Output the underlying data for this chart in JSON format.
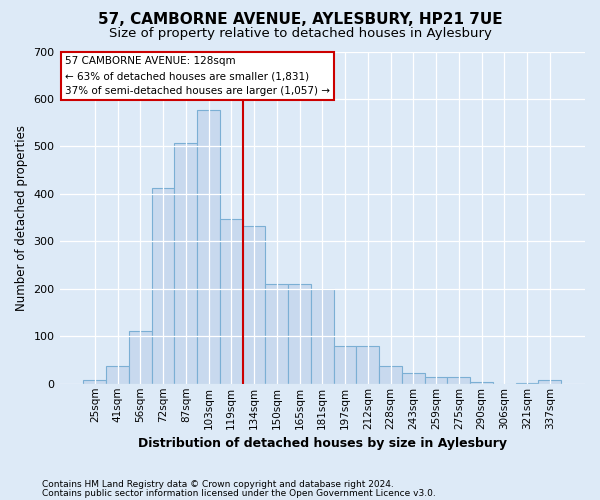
{
  "title": "57, CAMBORNE AVENUE, AYLESBURY, HP21 7UE",
  "subtitle": "Size of property relative to detached houses in Aylesbury",
  "xlabel": "Distribution of detached houses by size in Aylesbury",
  "ylabel": "Number of detached properties",
  "categories": [
    "25sqm",
    "41sqm",
    "56sqm",
    "72sqm",
    "87sqm",
    "103sqm",
    "119sqm",
    "134sqm",
    "150sqm",
    "165sqm",
    "181sqm",
    "197sqm",
    "212sqm",
    "228sqm",
    "243sqm",
    "259sqm",
    "275sqm",
    "290sqm",
    "306sqm",
    "321sqm",
    "337sqm"
  ],
  "values": [
    8,
    38,
    112,
    413,
    507,
    577,
    347,
    333,
    211,
    210,
    200,
    79,
    79,
    38,
    22,
    14,
    14,
    4,
    0,
    2,
    7
  ],
  "bar_color": "#c8d9ee",
  "bar_edge_color": "#7bafd4",
  "annotation_title": "57 CAMBORNE AVENUE: 128sqm",
  "annotation_line1": "← 63% of detached houses are smaller (1,831)",
  "annotation_line2": "37% of semi-detached houses are larger (1,057) →",
  "annotation_box_color": "#ffffff",
  "annotation_box_edge": "#cc0000",
  "marker_line_color": "#cc0000",
  "footer1": "Contains HM Land Registry data © Crown copyright and database right 2024.",
  "footer2": "Contains public sector information licensed under the Open Government Licence v3.0.",
  "bg_color": "#ddeaf7",
  "plot_bg_color": "#ddeaf7",
  "ylim": [
    0,
    700
  ],
  "yticks": [
    0,
    100,
    200,
    300,
    400,
    500,
    600,
    700
  ],
  "grid_color": "#ffffff",
  "title_fontsize": 11,
  "subtitle_fontsize": 9.5,
  "ylabel_fontsize": 8.5,
  "xlabel_fontsize": 9,
  "tick_fontsize": 7.5,
  "footer_fontsize": 6.5
}
